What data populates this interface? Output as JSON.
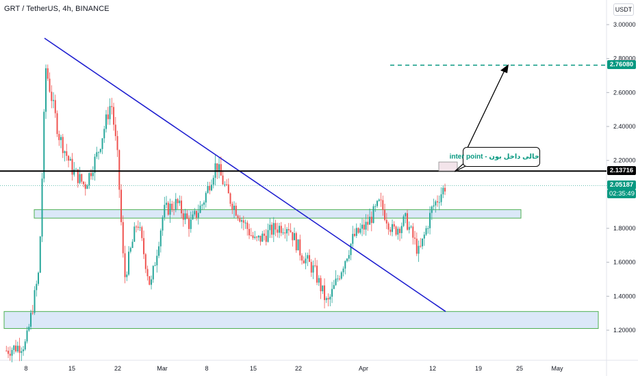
{
  "header": {
    "title": "GRT / TetherUS, 4h, BINANCE",
    "currency": "USDT"
  },
  "colors": {
    "up": "#26a69a",
    "down": "#ef5350",
    "trendline": "#1f1fd0",
    "resistance": "#000000",
    "target": "#089981",
    "zone_fill": "#dbe8f8",
    "zone_border": "#4caf50"
  },
  "annotations": {
    "note": "خالی داخل بون - inter point",
    "target_label": "2.76080",
    "resistance_label": "2.13716",
    "last_price_label": "2.05187",
    "countdown": "02:35:49"
  },
  "chart_data": {
    "type": "candlestick",
    "symbol": "GRT / TetherUS",
    "interval": "4h",
    "exchange": "BINANCE",
    "y_axis": {
      "ticks": [
        "3.00000",
        "2.80000",
        "2.60000",
        "2.40000",
        "2.20000",
        "1.80000",
        "1.60000",
        "1.40000",
        "1.20000"
      ],
      "range": [
        1.05,
        3.05
      ]
    },
    "x_axis": {
      "ticks": [
        "8",
        "15",
        "22",
        "Mar",
        "8",
        "15",
        "22",
        "Apr",
        "12",
        "19",
        "25",
        "May"
      ]
    },
    "levels": {
      "resistance": 2.13716,
      "target": 2.7608,
      "last_price": 2.05187
    },
    "zones": [
      {
        "name": "support-upper",
        "low": 1.86,
        "high": 1.91
      },
      {
        "name": "support-lower",
        "low": 1.21,
        "high": 1.31
      }
    ],
    "trendline": {
      "from": [
        "Feb 8",
        2.92
      ],
      "to": [
        "Apr 13",
        1.31
      ]
    },
    "approx_close_path": [
      [
        "Feb 5",
        1.08
      ],
      [
        "Feb 8",
        1.12
      ],
      [
        "Feb 10",
        1.55
      ],
      [
        "Feb 11",
        2.75
      ],
      [
        "Feb 13",
        2.35
      ],
      [
        "Feb 15",
        2.15
      ],
      [
        "Feb 17",
        2.05
      ],
      [
        "Feb 19",
        2.25
      ],
      [
        "Feb 21",
        2.55
      ],
      [
        "Feb 22",
        2.2
      ],
      [
        "Feb 23",
        1.5
      ],
      [
        "Feb 25",
        1.85
      ],
      [
        "Feb 27",
        1.45
      ],
      [
        "Mar 1",
        1.9
      ],
      [
        "Mar 3",
        1.95
      ],
      [
        "Mar 5",
        1.82
      ],
      [
        "Mar 7",
        1.95
      ],
      [
        "Mar 9",
        2.18
      ],
      [
        "Mar 11",
        1.98
      ],
      [
        "Mar 13",
        1.85
      ],
      [
        "Mar 15",
        1.72
      ],
      [
        "Mar 18",
        1.8
      ],
      [
        "Mar 20",
        1.82
      ],
      [
        "Mar 22",
        1.65
      ],
      [
        "Mar 24",
        1.55
      ],
      [
        "Mar 26",
        1.35
      ],
      [
        "Mar 28",
        1.55
      ],
      [
        "Mar 30",
        1.75
      ],
      [
        "Apr 1",
        1.82
      ],
      [
        "Apr 3",
        1.95
      ],
      [
        "Apr 5",
        1.78
      ],
      [
        "Apr 7",
        1.85
      ],
      [
        "Apr 9",
        1.65
      ],
      [
        "Apr 11",
        1.92
      ],
      [
        "Apr 13",
        2.05
      ]
    ]
  }
}
